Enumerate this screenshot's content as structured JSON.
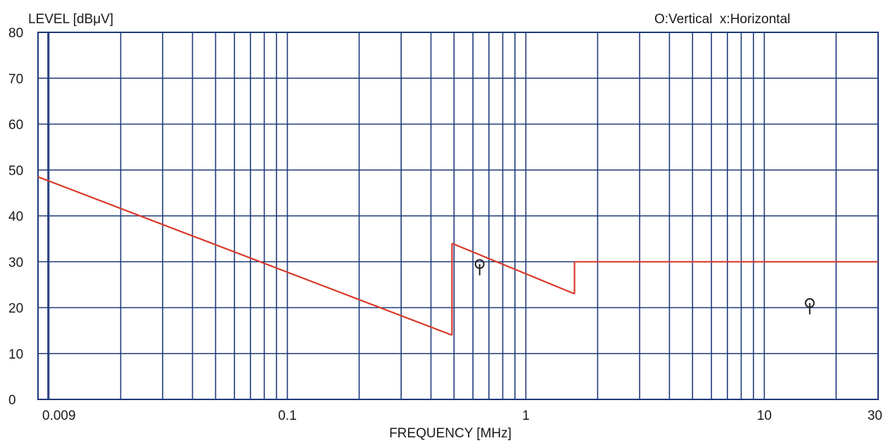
{
  "chart_data": {
    "type": "line",
    "ylabel": "LEVEL [dBμV]",
    "xlabel": "FREQUENCY [MHz]",
    "legend": "O:Vertical  x:Horizontal",
    "x_scale": "log",
    "xlim": [
      0.009,
      30
    ],
    "ylim": [
      0,
      80
    ],
    "x_tick_labels": [
      {
        "value": 0.009,
        "label": "0.009"
      },
      {
        "value": 0.1,
        "label": "0.1"
      },
      {
        "value": 1,
        "label": "1"
      },
      {
        "value": 10,
        "label": "10"
      },
      {
        "value": 30,
        "label": "30"
      }
    ],
    "y_ticks": [
      0,
      10,
      20,
      30,
      40,
      50,
      60,
      70,
      80
    ],
    "grid": true,
    "colors": {
      "grid": "#1f3a7a",
      "limit_line": "#d83a2a",
      "marker": "#222222",
      "text": "#1a1a1a"
    },
    "series": [
      {
        "type": "line",
        "segments": [
          [
            [
              0.009,
              48.5
            ],
            [
              0.49,
              14
            ]
          ],
          [
            [
              0.49,
              14
            ],
            [
              0.49,
              34
            ]
          ],
          [
            [
              0.49,
              34
            ],
            [
              1.6,
              23
            ]
          ],
          [
            [
              1.6,
              23
            ],
            [
              1.6,
              30
            ]
          ],
          [
            [
              1.6,
              30
            ],
            [
              30,
              30
            ]
          ]
        ]
      },
      {
        "type": "scatter",
        "marker": "O",
        "points": [
          [
            0.64,
            29.5
          ],
          [
            15.5,
            21
          ]
        ]
      }
    ]
  }
}
